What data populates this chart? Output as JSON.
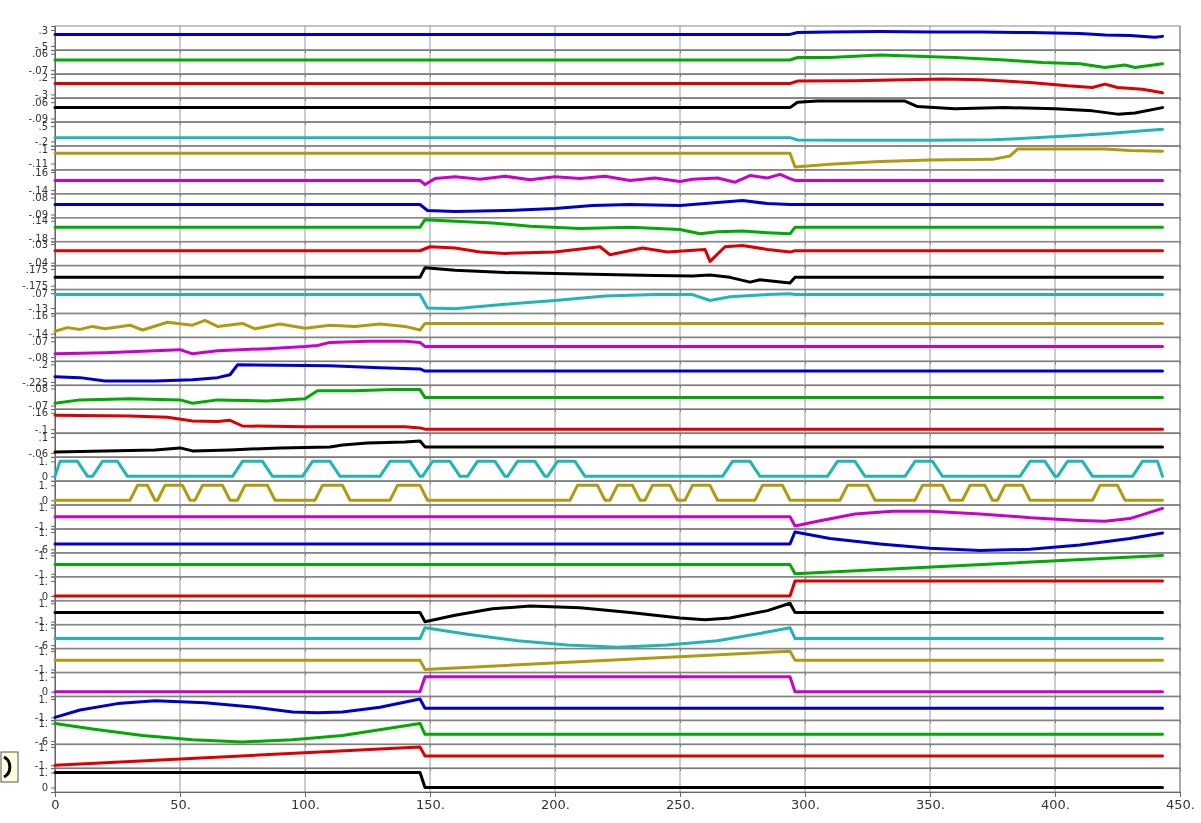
{
  "chart_data": [
    {
      "type": "line",
      "color": "#0000cc",
      "x": [
        0,
        294,
        297,
        310,
        330,
        350,
        370,
        390,
        410,
        420,
        430,
        440,
        443
      ],
      "values": [
        0.08,
        0.08,
        0.17,
        0.2,
        0.22,
        0.2,
        0.2,
        0.17,
        0.12,
        0.05,
        0.02,
        -0.06,
        -0.02
      ],
      "ylim": [
        -0.7,
        0.5
      ],
      "yticks": [
        {
          "value": -0.5,
          "label": "-.5"
        },
        {
          "value": 0.3,
          "label": ".3"
        }
      ],
      "xlim": [
        0,
        450
      ],
      "xticks": [
        0,
        50,
        100,
        150,
        200,
        250,
        300,
        350,
        400,
        450
      ],
      "grid": "x",
      "tick_labels": "y"
    },
    {
      "type": "line",
      "color": "#00aa00",
      "x": [
        0,
        294,
        297,
        310,
        330,
        345,
        360,
        380,
        395,
        410,
        420,
        428,
        432,
        443
      ],
      "values": [
        0.01,
        0.01,
        0.03,
        0.03,
        0.05,
        0.04,
        0.03,
        0.01,
        -0.01,
        -0.02,
        -0.05,
        -0.03,
        -0.05,
        -0.02
      ],
      "ylim": [
        -0.1,
        0.09
      ],
      "yticks": [
        {
          "value": -0.07,
          "label": "-.07"
        },
        {
          "value": 0.06,
          "label": ".06"
        }
      ],
      "xlim": [
        0,
        450
      ],
      "xticks": [
        0,
        50,
        100,
        150,
        200,
        250,
        300,
        350,
        400,
        450
      ],
      "grid": "x",
      "tick_labels": "y"
    },
    {
      "type": "line",
      "color": "#dd0000",
      "x": [
        0,
        294,
        297,
        320,
        340,
        355,
        370,
        390,
        405,
        415,
        420,
        425,
        435,
        443
      ],
      "values": [
        0.02,
        0.02,
        0.09,
        0.1,
        0.13,
        0.15,
        0.13,
        0.05,
        -0.05,
        -0.1,
        0.0,
        -0.1,
        -0.15,
        -0.25
      ],
      "ylim": [
        -0.4,
        0.3
      ],
      "yticks": [
        {
          "value": -0.3,
          "label": "-.3"
        },
        {
          "value": 0.2,
          "label": ".2"
        }
      ],
      "xlim": [
        0,
        450
      ],
      "xticks": [
        0,
        50,
        100,
        150,
        200,
        250,
        300,
        350,
        400,
        450
      ],
      "grid": "x",
      "tick_labels": "y"
    },
    {
      "type": "line",
      "color": "#000000",
      "x": [
        0,
        294,
        297,
        305,
        320,
        340,
        345,
        360,
        380,
        400,
        415,
        425,
        432,
        443
      ],
      "values": [
        0.01,
        0.01,
        0.06,
        0.07,
        0.07,
        0.07,
        0.02,
        0.0,
        0.01,
        0.0,
        -0.02,
        -0.05,
        -0.04,
        0.01
      ],
      "ylim": [
        -0.12,
        0.1
      ],
      "yticks": [
        {
          "value": -0.09,
          "label": "-.09"
        },
        {
          "value": 0.06,
          "label": ".06"
        }
      ],
      "xlim": [
        0,
        450
      ],
      "xticks": [
        0,
        50,
        100,
        150,
        200,
        250,
        300,
        350,
        400,
        450
      ],
      "grid": "x",
      "tick_labels": "y"
    },
    {
      "type": "line",
      "color": "#22b5b5",
      "x": [
        0,
        294,
        297,
        320,
        350,
        375,
        390,
        405,
        420,
        443
      ],
      "values": [
        -0.03,
        -0.03,
        -0.14,
        -0.15,
        -0.15,
        -0.13,
        -0.05,
        0.05,
        0.15,
        0.35
      ],
      "ylim": [
        -0.4,
        0.7
      ],
      "yticks": [
        {
          "value": -0.2,
          "label": "-.2"
        },
        {
          "value": 0.5,
          "label": ".5"
        }
      ],
      "xlim": [
        0,
        450
      ],
      "xticks": [
        0,
        50,
        100,
        150,
        200,
        250,
        300,
        350,
        400,
        450
      ],
      "grid": "x",
      "tick_labels": "y"
    },
    {
      "type": "line",
      "color": "#b09a10",
      "x": [
        0,
        294,
        296,
        310,
        330,
        350,
        375,
        382,
        385,
        400,
        420,
        430,
        443
      ],
      "values": [
        0.04,
        0.04,
        -0.16,
        -0.12,
        -0.08,
        -0.06,
        -0.05,
        0.0,
        0.1,
        0.1,
        0.1,
        0.08,
        0.07
      ],
      "ylim": [
        -0.2,
        0.15
      ],
      "yticks": [
        {
          "value": -0.11,
          "label": "-.11"
        },
        {
          "value": 0.1,
          "label": ".1"
        }
      ],
      "xlim": [
        0,
        450
      ],
      "xticks": [
        0,
        50,
        100,
        150,
        200,
        250,
        300,
        350,
        400,
        450
      ],
      "grid": "x",
      "tick_labels": "y"
    },
    {
      "type": "line",
      "color": "#cc00cc",
      "x": [
        0,
        146,
        148,
        152,
        160,
        170,
        180,
        190,
        200,
        210,
        220,
        230,
        240,
        250,
        255,
        265,
        272,
        278,
        285,
        290,
        294,
        296,
        443
      ],
      "values": [
        0.02,
        0.02,
        -0.05,
        0.05,
        0.08,
        0.04,
        0.09,
        0.03,
        0.08,
        0.05,
        0.09,
        0.02,
        0.06,
        0.0,
        0.04,
        0.06,
        -0.01,
        0.1,
        0.06,
        0.12,
        0.05,
        0.02,
        0.02
      ],
      "ylim": [
        -0.2,
        0.2
      ],
      "yticks": [
        {
          "value": -0.14,
          "label": "-.14"
        },
        {
          "value": 0.16,
          "label": ".16"
        }
      ],
      "xlim": [
        0,
        450
      ],
      "xticks": [
        0,
        50,
        100,
        150,
        200,
        250,
        300,
        350,
        400,
        450
      ],
      "grid": "x",
      "tick_labels": "y"
    },
    {
      "type": "line",
      "color": "#0000cc",
      "x": [
        0,
        146,
        149,
        160,
        180,
        200,
        215,
        230,
        250,
        265,
        275,
        285,
        294,
        296,
        443
      ],
      "values": [
        0.01,
        0.01,
        -0.05,
        -0.06,
        -0.05,
        -0.03,
        0.0,
        0.01,
        0.0,
        0.03,
        0.05,
        0.02,
        0.01,
        0.01,
        0.01
      ],
      "ylim": [
        -0.12,
        0.12
      ],
      "yticks": [
        {
          "value": -0.09,
          "label": "-.09"
        },
        {
          "value": 0.08,
          "label": ".08"
        }
      ],
      "xlim": [
        0,
        450
      ],
      "xticks": [
        0,
        50,
        100,
        150,
        200,
        250,
        300,
        350,
        400,
        450
      ],
      "grid": "x",
      "tick_labels": "y"
    },
    {
      "type": "line",
      "color": "#00aa00",
      "x": [
        0,
        146,
        148,
        160,
        175,
        190,
        210,
        230,
        250,
        258,
        265,
        275,
        285,
        294,
        296,
        443
      ],
      "values": [
        0.02,
        0.02,
        0.16,
        0.13,
        0.1,
        0.04,
        0.0,
        0.02,
        -0.02,
        -0.1,
        -0.06,
        -0.05,
        -0.08,
        -0.1,
        0.02,
        0.02
      ],
      "ylim": [
        -0.24,
        0.2
      ],
      "yticks": [
        {
          "value": -0.18,
          "label": "-.18"
        },
        {
          "value": 0.14,
          "label": ".14"
        }
      ],
      "xlim": [
        0,
        450
      ],
      "xticks": [
        0,
        50,
        100,
        150,
        200,
        250,
        300,
        350,
        400,
        450
      ],
      "grid": "x",
      "tick_labels": "y"
    },
    {
      "type": "line",
      "color": "#dd0000",
      "x": [
        0,
        146,
        150,
        160,
        170,
        180,
        200,
        218,
        222,
        235,
        245,
        260,
        262,
        268,
        275,
        285,
        294,
        296,
        443
      ],
      "values": [
        0.005,
        0.005,
        0.02,
        0.015,
        0.0,
        -0.005,
        0.0,
        0.02,
        -0.01,
        0.015,
        0.0,
        0.01,
        -0.035,
        0.02,
        0.025,
        0.01,
        0.0,
        0.005,
        0.005
      ],
      "ylim": [
        -0.05,
        0.04
      ],
      "yticks": [
        {
          "value": -0.04,
          "label": "-.04"
        },
        {
          "value": 0.03,
          "label": ".03"
        }
      ],
      "xlim": [
        0,
        450
      ],
      "xticks": [
        0,
        50,
        100,
        150,
        200,
        250,
        300,
        350,
        400,
        450
      ],
      "grid": "x",
      "tick_labels": "y"
    },
    {
      "type": "line",
      "color": "#000000",
      "x": [
        0,
        146,
        148,
        160,
        180,
        200,
        220,
        240,
        255,
        262,
        270,
        278,
        282,
        294,
        296,
        443
      ],
      "values": [
        0.0,
        0.0,
        0.2,
        0.15,
        0.1,
        0.08,
        0.06,
        0.04,
        0.03,
        0.05,
        0.0,
        -0.1,
        -0.05,
        -0.12,
        0.0,
        0.0
      ],
      "ylim": [
        -0.25,
        0.25
      ],
      "yticks": [
        {
          "value": -0.175,
          "label": "-.175"
        },
        {
          "value": 0.175,
          "label": ".175"
        }
      ],
      "xlim": [
        0,
        450
      ],
      "xticks": [
        0,
        50,
        100,
        150,
        200,
        250,
        300,
        350,
        400,
        450
      ],
      "grid": "x",
      "tick_labels": "y"
    },
    {
      "type": "line",
      "color": "#22b5b5",
      "x": [
        0,
        146,
        149,
        160,
        180,
        200,
        220,
        240,
        255,
        262,
        270,
        285,
        294,
        296,
        443
      ],
      "values": [
        0.05,
        0.05,
        -0.13,
        -0.14,
        -0.08,
        -0.03,
        0.03,
        0.05,
        0.05,
        -0.03,
        0.02,
        0.05,
        0.06,
        0.05,
        0.05
      ],
      "ylim": [
        -0.2,
        0.12
      ],
      "yticks": [
        {
          "value": -0.13,
          "label": "-.13"
        },
        {
          "value": 0.07,
          "label": ".07"
        }
      ],
      "xlim": [
        0,
        450
      ],
      "xticks": [
        0,
        50,
        100,
        150,
        200,
        250,
        300,
        350,
        400,
        450
      ],
      "grid": "x",
      "tick_labels": "y"
    },
    {
      "type": "line",
      "color": "#b09a10",
      "x": [
        0,
        5,
        10,
        15,
        20,
        30,
        35,
        45,
        55,
        60,
        65,
        75,
        80,
        90,
        100,
        110,
        120,
        130,
        140,
        146,
        148,
        443
      ],
      "values": [
        -0.1,
        -0.04,
        -0.07,
        -0.02,
        -0.06,
        0.0,
        -0.08,
        0.05,
        0.0,
        0.08,
        -0.02,
        0.03,
        -0.06,
        0.02,
        -0.05,
        0.0,
        -0.02,
        0.02,
        -0.02,
        -0.08,
        0.03,
        0.03
      ],
      "ylim": [
        -0.2,
        0.2
      ],
      "yticks": [
        {
          "value": -0.14,
          "label": "-.14"
        },
        {
          "value": 0.16,
          "label": ".16"
        }
      ],
      "xlim": [
        0,
        450
      ],
      "xticks": [
        0,
        50,
        100,
        150,
        200,
        250,
        300,
        350,
        400,
        450
      ],
      "grid": "x",
      "tick_labels": "y"
    },
    {
      "type": "line",
      "color": "#cc00cc",
      "x": [
        0,
        20,
        40,
        50,
        55,
        65,
        85,
        100,
        105,
        110,
        125,
        140,
        146,
        148,
        443
      ],
      "values": [
        -0.05,
        -0.04,
        -0.02,
        -0.01,
        -0.05,
        -0.02,
        0.0,
        0.02,
        0.03,
        0.06,
        0.07,
        0.07,
        0.06,
        0.02,
        0.02
      ],
      "ylim": [
        -0.12,
        0.11
      ],
      "yticks": [
        {
          "value": -0.08,
          "label": "-.08"
        },
        {
          "value": 0.07,
          "label": ".07"
        }
      ],
      "xlim": [
        0,
        450
      ],
      "xticks": [
        0,
        50,
        100,
        150,
        200,
        250,
        300,
        350,
        400,
        450
      ],
      "grid": "x",
      "tick_labels": "y"
    },
    {
      "type": "line",
      "color": "#0000cc",
      "x": [
        0,
        10,
        20,
        40,
        55,
        65,
        70,
        73,
        90,
        110,
        130,
        146,
        148,
        443
      ],
      "values": [
        -0.1,
        -0.12,
        -0.2,
        -0.2,
        -0.17,
        -0.12,
        -0.05,
        0.19,
        0.18,
        0.17,
        0.12,
        0.09,
        0.04,
        0.04
      ],
      "ylim": [
        -0.3,
        0.28
      ],
      "yticks": [
        {
          "value": -0.225,
          "label": "-.225"
        },
        {
          "value": 0.2,
          "label": ".2"
        }
      ],
      "xlim": [
        0,
        450
      ],
      "xticks": [
        0,
        50,
        100,
        150,
        200,
        250,
        300,
        350,
        400,
        450
      ],
      "grid": "x",
      "tick_labels": "y"
    },
    {
      "type": "line",
      "color": "#00aa00",
      "x": [
        0,
        10,
        30,
        50,
        55,
        65,
        85,
        100,
        105,
        120,
        135,
        146,
        148,
        443
      ],
      "values": [
        -0.05,
        -0.02,
        -0.01,
        -0.02,
        -0.05,
        -0.02,
        -0.03,
        -0.01,
        0.06,
        0.06,
        0.07,
        0.07,
        0.0,
        0.0
      ],
      "ylim": [
        -0.1,
        0.11
      ],
      "yticks": [
        {
          "value": -0.07,
          "label": "-.07"
        },
        {
          "value": 0.08,
          "label": ".08"
        }
      ],
      "xlim": [
        0,
        450
      ],
      "xticks": [
        0,
        50,
        100,
        150,
        200,
        250,
        300,
        350,
        400,
        450
      ],
      "grid": "x",
      "tick_labels": "y"
    },
    {
      "type": "line",
      "color": "#dd0000",
      "x": [
        0,
        30,
        45,
        55,
        65,
        70,
        75,
        100,
        125,
        140,
        146,
        148,
        443
      ],
      "values": [
        0.12,
        0.11,
        0.09,
        0.03,
        0.02,
        0.04,
        -0.05,
        -0.06,
        -0.06,
        -0.06,
        -0.08,
        -0.1,
        -0.1
      ],
      "ylim": [
        -0.16,
        0.22
      ],
      "yticks": [
        {
          "value": -0.1,
          "label": "-.1"
        },
        {
          "value": 0.16,
          "label": ".16"
        }
      ],
      "xlim": [
        0,
        450
      ],
      "xticks": [
        0,
        50,
        100,
        150,
        200,
        250,
        300,
        350,
        400,
        450
      ],
      "grid": "x",
      "tick_labels": "y"
    },
    {
      "type": "line",
      "color": "#000000",
      "x": [
        0,
        20,
        40,
        50,
        55,
        70,
        90,
        110,
        115,
        125,
        140,
        146,
        148,
        443
      ],
      "values": [
        -0.05,
        -0.04,
        -0.03,
        -0.01,
        -0.04,
        -0.03,
        -0.01,
        0.0,
        0.02,
        0.04,
        0.05,
        0.06,
        0.0,
        0.0
      ],
      "ylim": [
        -0.1,
        0.14
      ],
      "yticks": [
        {
          "value": -0.06,
          "label": "-.06"
        },
        {
          "value": 0.1,
          "label": ".1"
        }
      ],
      "xlim": [
        0,
        450
      ],
      "xticks": [
        0,
        50,
        100,
        150,
        200,
        250,
        300,
        350,
        400,
        450
      ],
      "grid": "x",
      "tick_labels": "y"
    },
    {
      "type": "line",
      "color": "#22b5b5",
      "x": [
        0,
        2,
        9,
        13,
        15,
        19,
        25,
        29,
        71,
        75,
        83,
        87,
        99,
        103,
        110,
        114,
        130,
        134,
        142,
        146,
        147,
        151,
        158,
        162,
        165,
        169,
        176,
        180,
        181,
        185,
        192,
        196,
        197,
        201,
        208,
        212,
        267,
        271,
        278,
        282,
        309,
        313,
        320,
        324,
        340,
        344,
        351,
        355,
        386,
        390,
        396,
        400,
        401,
        405,
        411,
        415,
        431,
        435,
        441,
        443
      ],
      "values": [
        0,
        1,
        1,
        0,
        0,
        1,
        1,
        0,
        0,
        1,
        1,
        0,
        0,
        1,
        1,
        0,
        0,
        1,
        1,
        0,
        0,
        1,
        1,
        0,
        0,
        1,
        1,
        0,
        0,
        1,
        1,
        0,
        0,
        1,
        1,
        0,
        0,
        1,
        1,
        0,
        0,
        1,
        1,
        0,
        0,
        1,
        1,
        0,
        0,
        1,
        1,
        0,
        0,
        1,
        1,
        0,
        0,
        1,
        1,
        0
      ],
      "ylim": [
        -0.3,
        1.3
      ],
      "yticks": [
        {
          "value": 0,
          "label": "0"
        },
        {
          "value": 1,
          "label": "1."
        }
      ],
      "xlim": [
        0,
        450
      ],
      "xticks": [
        0,
        50,
        100,
        150,
        200,
        250,
        300,
        350,
        400,
        450
      ],
      "grid": "x",
      "tick_labels": "y"
    },
    {
      "type": "line",
      "color": "#b09a10",
      "x": [
        0,
        30,
        33,
        37,
        40,
        41,
        44,
        51,
        54,
        56,
        59,
        67,
        70,
        73,
        76,
        85,
        88,
        104,
        107,
        115,
        118,
        134,
        137,
        146,
        149,
        206,
        209,
        217,
        220,
        222,
        225,
        231,
        234,
        236,
        239,
        246,
        249,
        252,
        255,
        262,
        265,
        280,
        283,
        291,
        294,
        314,
        317,
        325,
        328,
        344,
        347,
        355,
        358,
        363,
        366,
        372,
        375,
        377,
        380,
        387,
        390,
        415,
        418,
        425,
        428,
        443
      ],
      "values": [
        0,
        0,
        1,
        1,
        0,
        0,
        1,
        1,
        0,
        0,
        1,
        1,
        0,
        0,
        1,
        1,
        0,
        0,
        1,
        1,
        0,
        0,
        1,
        1,
        0,
        0,
        1,
        1,
        0,
        0,
        1,
        1,
        0,
        0,
        1,
        1,
        0,
        0,
        1,
        1,
        0,
        0,
        1,
        1,
        0,
        0,
        1,
        1,
        0,
        0,
        1,
        1,
        0,
        0,
        1,
        1,
        0,
        0,
        1,
        1,
        0,
        0,
        1,
        1,
        0,
        0
      ],
      "ylim": [
        -0.3,
        1.3
      ],
      "yticks": [
        {
          "value": 0,
          "label": "0"
        },
        {
          "value": 1,
          "label": "1."
        }
      ],
      "xlim": [
        0,
        450
      ],
      "xticks": [
        0,
        50,
        100,
        150,
        200,
        250,
        300,
        350,
        400,
        450
      ],
      "grid": "x",
      "tick_labels": "y"
    },
    {
      "type": "line",
      "color": "#cc00cc",
      "x": [
        0,
        294,
        296,
        305,
        320,
        335,
        350,
        370,
        390,
        410,
        420,
        430,
        443
      ],
      "values": [
        0,
        0,
        -1.0,
        -0.5,
        0.3,
        0.6,
        0.6,
        0.3,
        -0.1,
        -0.4,
        -0.5,
        -0.2,
        0.9
      ],
      "ylim": [
        -1.3,
        1.3
      ],
      "yticks": [
        {
          "value": -1,
          "label": "-1."
        },
        {
          "value": 1,
          "label": "1."
        }
      ],
      "xlim": [
        0,
        450
      ],
      "xticks": [
        0,
        50,
        100,
        150,
        200,
        250,
        300,
        350,
        400,
        450
      ],
      "grid": "x",
      "tick_labels": "y"
    },
    {
      "type": "line",
      "color": "#0000cc",
      "x": [
        0,
        294,
        296,
        310,
        330,
        350,
        370,
        390,
        410,
        430,
        443
      ],
      "values": [
        -0.1,
        -0.1,
        1.0,
        0.4,
        -0.1,
        -0.5,
        -0.7,
        -0.6,
        -0.2,
        0.4,
        0.9
      ],
      "ylim": [
        -0.9,
        1.3
      ],
      "yticks": [
        {
          "value": -0.6,
          "label": "-.6"
        },
        {
          "value": 1,
          "label": "1."
        }
      ],
      "xlim": [
        0,
        450
      ],
      "xticks": [
        0,
        50,
        100,
        150,
        200,
        250,
        300,
        350,
        400,
        450
      ],
      "grid": "x",
      "tick_labels": "y"
    },
    {
      "type": "line",
      "color": "#00aa00",
      "x": [
        0,
        294,
        296,
        443
      ],
      "values": [
        0,
        0,
        -1,
        1
      ],
      "ylim": [
        -1.3,
        1.3
      ],
      "yticks": [
        {
          "value": -1,
          "label": "-1."
        },
        {
          "value": 1,
          "label": "1."
        }
      ],
      "xlim": [
        0,
        450
      ],
      "xticks": [
        0,
        50,
        100,
        150,
        200,
        250,
        300,
        350,
        400,
        450
      ],
      "grid": "x",
      "tick_labels": "y"
    },
    {
      "type": "line",
      "color": "#dd0000",
      "x": [
        0,
        294,
        296,
        443
      ],
      "values": [
        0,
        0,
        1,
        1
      ],
      "ylim": [
        -0.3,
        1.3
      ],
      "yticks": [
        {
          "value": 0,
          "label": "0"
        },
        {
          "value": 1,
          "label": "1."
        }
      ],
      "xlim": [
        0,
        450
      ],
      "xticks": [
        0,
        50,
        100,
        150,
        200,
        250,
        300,
        350,
        400,
        450
      ],
      "grid": "x",
      "tick_labels": "y"
    },
    {
      "type": "line",
      "color": "#000000",
      "x": [
        0,
        146,
        148,
        160,
        175,
        190,
        210,
        230,
        250,
        260,
        270,
        285,
        294,
        296,
        443
      ],
      "values": [
        0,
        0,
        -1,
        -0.3,
        0.4,
        0.7,
        0.5,
        0,
        -0.6,
        -0.8,
        -0.6,
        0.2,
        1.0,
        0,
        0
      ],
      "ylim": [
        -1.3,
        1.3
      ],
      "yticks": [
        {
          "value": -1,
          "label": "-1."
        },
        {
          "value": 1,
          "label": "1."
        }
      ],
      "xlim": [
        0,
        450
      ],
      "xticks": [
        0,
        50,
        100,
        150,
        200,
        250,
        300,
        350,
        400,
        450
      ],
      "grid": "x",
      "tick_labels": "y"
    },
    {
      "type": "line",
      "color": "#22b5b5",
      "x": [
        0,
        146,
        148,
        165,
        185,
        205,
        225,
        245,
        265,
        285,
        294,
        296,
        443
      ],
      "values": [
        0,
        0,
        1.0,
        0.4,
        -0.2,
        -0.6,
        -0.8,
        -0.6,
        -0.2,
        0.6,
        1.0,
        0,
        0
      ],
      "ylim": [
        -0.9,
        1.3
      ],
      "yticks": [
        {
          "value": -0.6,
          "label": "-.6"
        },
        {
          "value": 1,
          "label": "1."
        }
      ],
      "xlim": [
        0,
        450
      ],
      "xticks": [
        0,
        50,
        100,
        150,
        200,
        250,
        300,
        350,
        400,
        450
      ],
      "grid": "x",
      "tick_labels": "y"
    },
    {
      "type": "line",
      "color": "#b09a10",
      "x": [
        0,
        146,
        148,
        294,
        296,
        443
      ],
      "values": [
        0,
        0,
        -1,
        1,
        0,
        0
      ],
      "ylim": [
        -1.3,
        1.3
      ],
      "yticks": [
        {
          "value": -1,
          "label": "-1."
        },
        {
          "value": 1,
          "label": "1."
        }
      ],
      "xlim": [
        0,
        450
      ],
      "xticks": [
        0,
        50,
        100,
        150,
        200,
        250,
        300,
        350,
        400,
        450
      ],
      "grid": "x",
      "tick_labels": "y"
    },
    {
      "type": "line",
      "color": "#cc00cc",
      "x": [
        0,
        146,
        148,
        294,
        296,
        443
      ],
      "values": [
        0,
        0,
        1,
        1,
        0,
        0
      ],
      "ylim": [
        -0.3,
        1.3
      ],
      "yticks": [
        {
          "value": 0,
          "label": "0"
        },
        {
          "value": 1,
          "label": "1."
        }
      ],
      "xlim": [
        0,
        450
      ],
      "xticks": [
        0,
        50,
        100,
        150,
        200,
        250,
        300,
        350,
        400,
        450
      ],
      "grid": "x",
      "tick_labels": "y"
    },
    {
      "type": "line",
      "color": "#0000cc",
      "x": [
        0,
        10,
        25,
        40,
        60,
        80,
        95,
        105,
        115,
        130,
        146,
        148,
        443
      ],
      "values": [
        -1,
        -0.2,
        0.5,
        0.8,
        0.6,
        0.1,
        -0.4,
        -0.5,
        -0.4,
        0.1,
        1.0,
        0,
        0
      ],
      "ylim": [
        -1.3,
        1.3
      ],
      "yticks": [
        {
          "value": -1,
          "label": "-1."
        },
        {
          "value": 1,
          "label": "1."
        }
      ],
      "xlim": [
        0,
        450
      ],
      "xticks": [
        0,
        50,
        100,
        150,
        200,
        250,
        300,
        350,
        400,
        450
      ],
      "grid": "x",
      "tick_labels": "y"
    },
    {
      "type": "line",
      "color": "#00aa00",
      "x": [
        0,
        15,
        35,
        55,
        75,
        95,
        115,
        135,
        146,
        148,
        443
      ],
      "values": [
        1.0,
        0.5,
        -0.1,
        -0.5,
        -0.7,
        -0.5,
        -0.1,
        0.6,
        1.0,
        0.0,
        0.0
      ],
      "ylim": [
        -0.9,
        1.3
      ],
      "yticks": [
        {
          "value": -0.6,
          "label": "-.6"
        },
        {
          "value": 1,
          "label": "1."
        }
      ],
      "xlim": [
        0,
        450
      ],
      "xticks": [
        0,
        50,
        100,
        150,
        200,
        250,
        300,
        350,
        400,
        450
      ],
      "grid": "x",
      "tick_labels": "y"
    },
    {
      "type": "line",
      "color": "#dd0000",
      "x": [
        0,
        146,
        148,
        443
      ],
      "values": [
        -1,
        1,
        0,
        0
      ],
      "ylim": [
        -1.3,
        1.3
      ],
      "yticks": [
        {
          "value": -1,
          "label": "-1."
        },
        {
          "value": 1,
          "label": "1."
        }
      ],
      "xlim": [
        0,
        450
      ],
      "xticks": [
        0,
        50,
        100,
        150,
        200,
        250,
        300,
        350,
        400,
        450
      ],
      "grid": "x",
      "tick_labels": "y"
    },
    {
      "type": "line",
      "color": "#000000",
      "x": [
        0,
        146,
        148,
        443
      ],
      "values": [
        1,
        1,
        0,
        0
      ],
      "ylim": [
        -0.3,
        1.3
      ],
      "yticks": [
        {
          "value": 0,
          "label": "0"
        },
        {
          "value": 1,
          "label": "1."
        }
      ],
      "xlim": [
        0,
        450
      ],
      "xticks": [
        {
          "value": 0,
          "label": "0"
        },
        {
          "value": 50,
          "label": "50."
        },
        {
          "value": 100,
          "label": "100."
        },
        {
          "value": 150,
          "label": "150."
        },
        {
          "value": 200,
          "label": "200."
        },
        {
          "value": 250,
          "label": "250."
        },
        {
          "value": 300,
          "label": "300."
        },
        {
          "value": 350,
          "label": "350."
        },
        {
          "value": 400,
          "label": "400."
        },
        {
          "value": 450,
          "label": "450."
        }
      ],
      "grid": "x"
    }
  ]
}
